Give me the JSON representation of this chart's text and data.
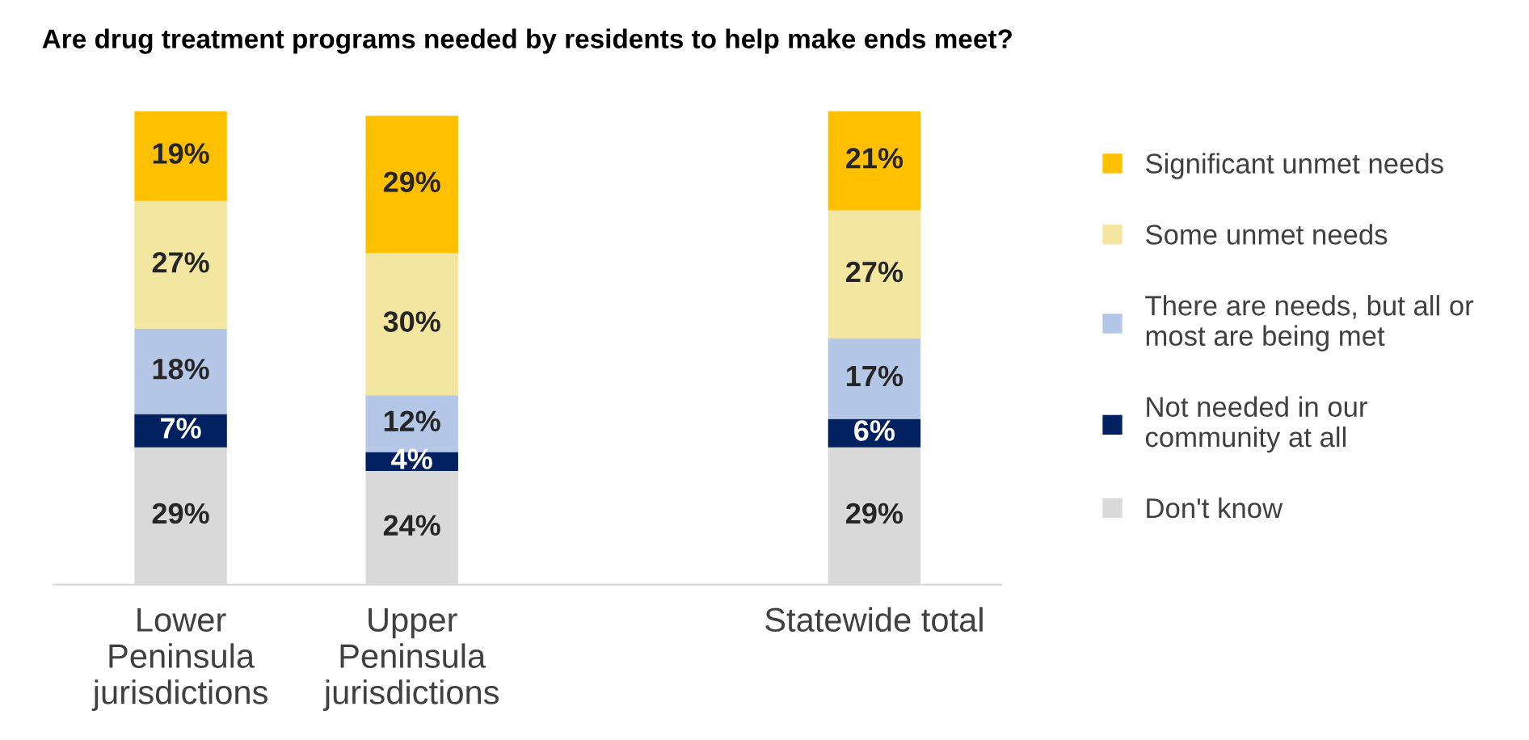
{
  "chart_data": {
    "type": "bar",
    "stacked": true,
    "title": "Are drug treatment programs needed by residents to help make ends meet?",
    "categories": [
      "Lower\nPeninsula\njurisdictions",
      "Upper\nPeninsula\njurisdictions",
      null,
      "Statewide total"
    ],
    "series": [
      {
        "name": "Don't know",
        "color": "#d9d9d9",
        "values": [
          29,
          24,
          null,
          29
        ],
        "value_labels": [
          "29%",
          "24%",
          null,
          "29%"
        ]
      },
      {
        "name": "Not needed in our\ncommunity at all",
        "color": "#002060",
        "values": [
          7,
          4,
          null,
          6
        ],
        "value_labels": [
          "7%",
          "4%",
          null,
          "6%"
        ]
      },
      {
        "name": "There are needs, but all or\nmost are being met",
        "color": "#b4c7e7",
        "values": [
          18,
          12,
          null,
          17
        ],
        "value_labels": [
          "18%",
          "12%",
          null,
          "17%"
        ]
      },
      {
        "name": "Some unmet needs",
        "color": "#f2e6a0",
        "values": [
          27,
          30,
          null,
          27
        ],
        "value_labels": [
          "27%",
          "30%",
          null,
          "27%"
        ]
      },
      {
        "name": "Significant unmet needs",
        "color": "#ffc000",
        "values": [
          19,
          29,
          null,
          21
        ],
        "value_labels": [
          "19%",
          "29%",
          null,
          "21%"
        ]
      }
    ],
    "legend": "right",
    "grid": false
  }
}
